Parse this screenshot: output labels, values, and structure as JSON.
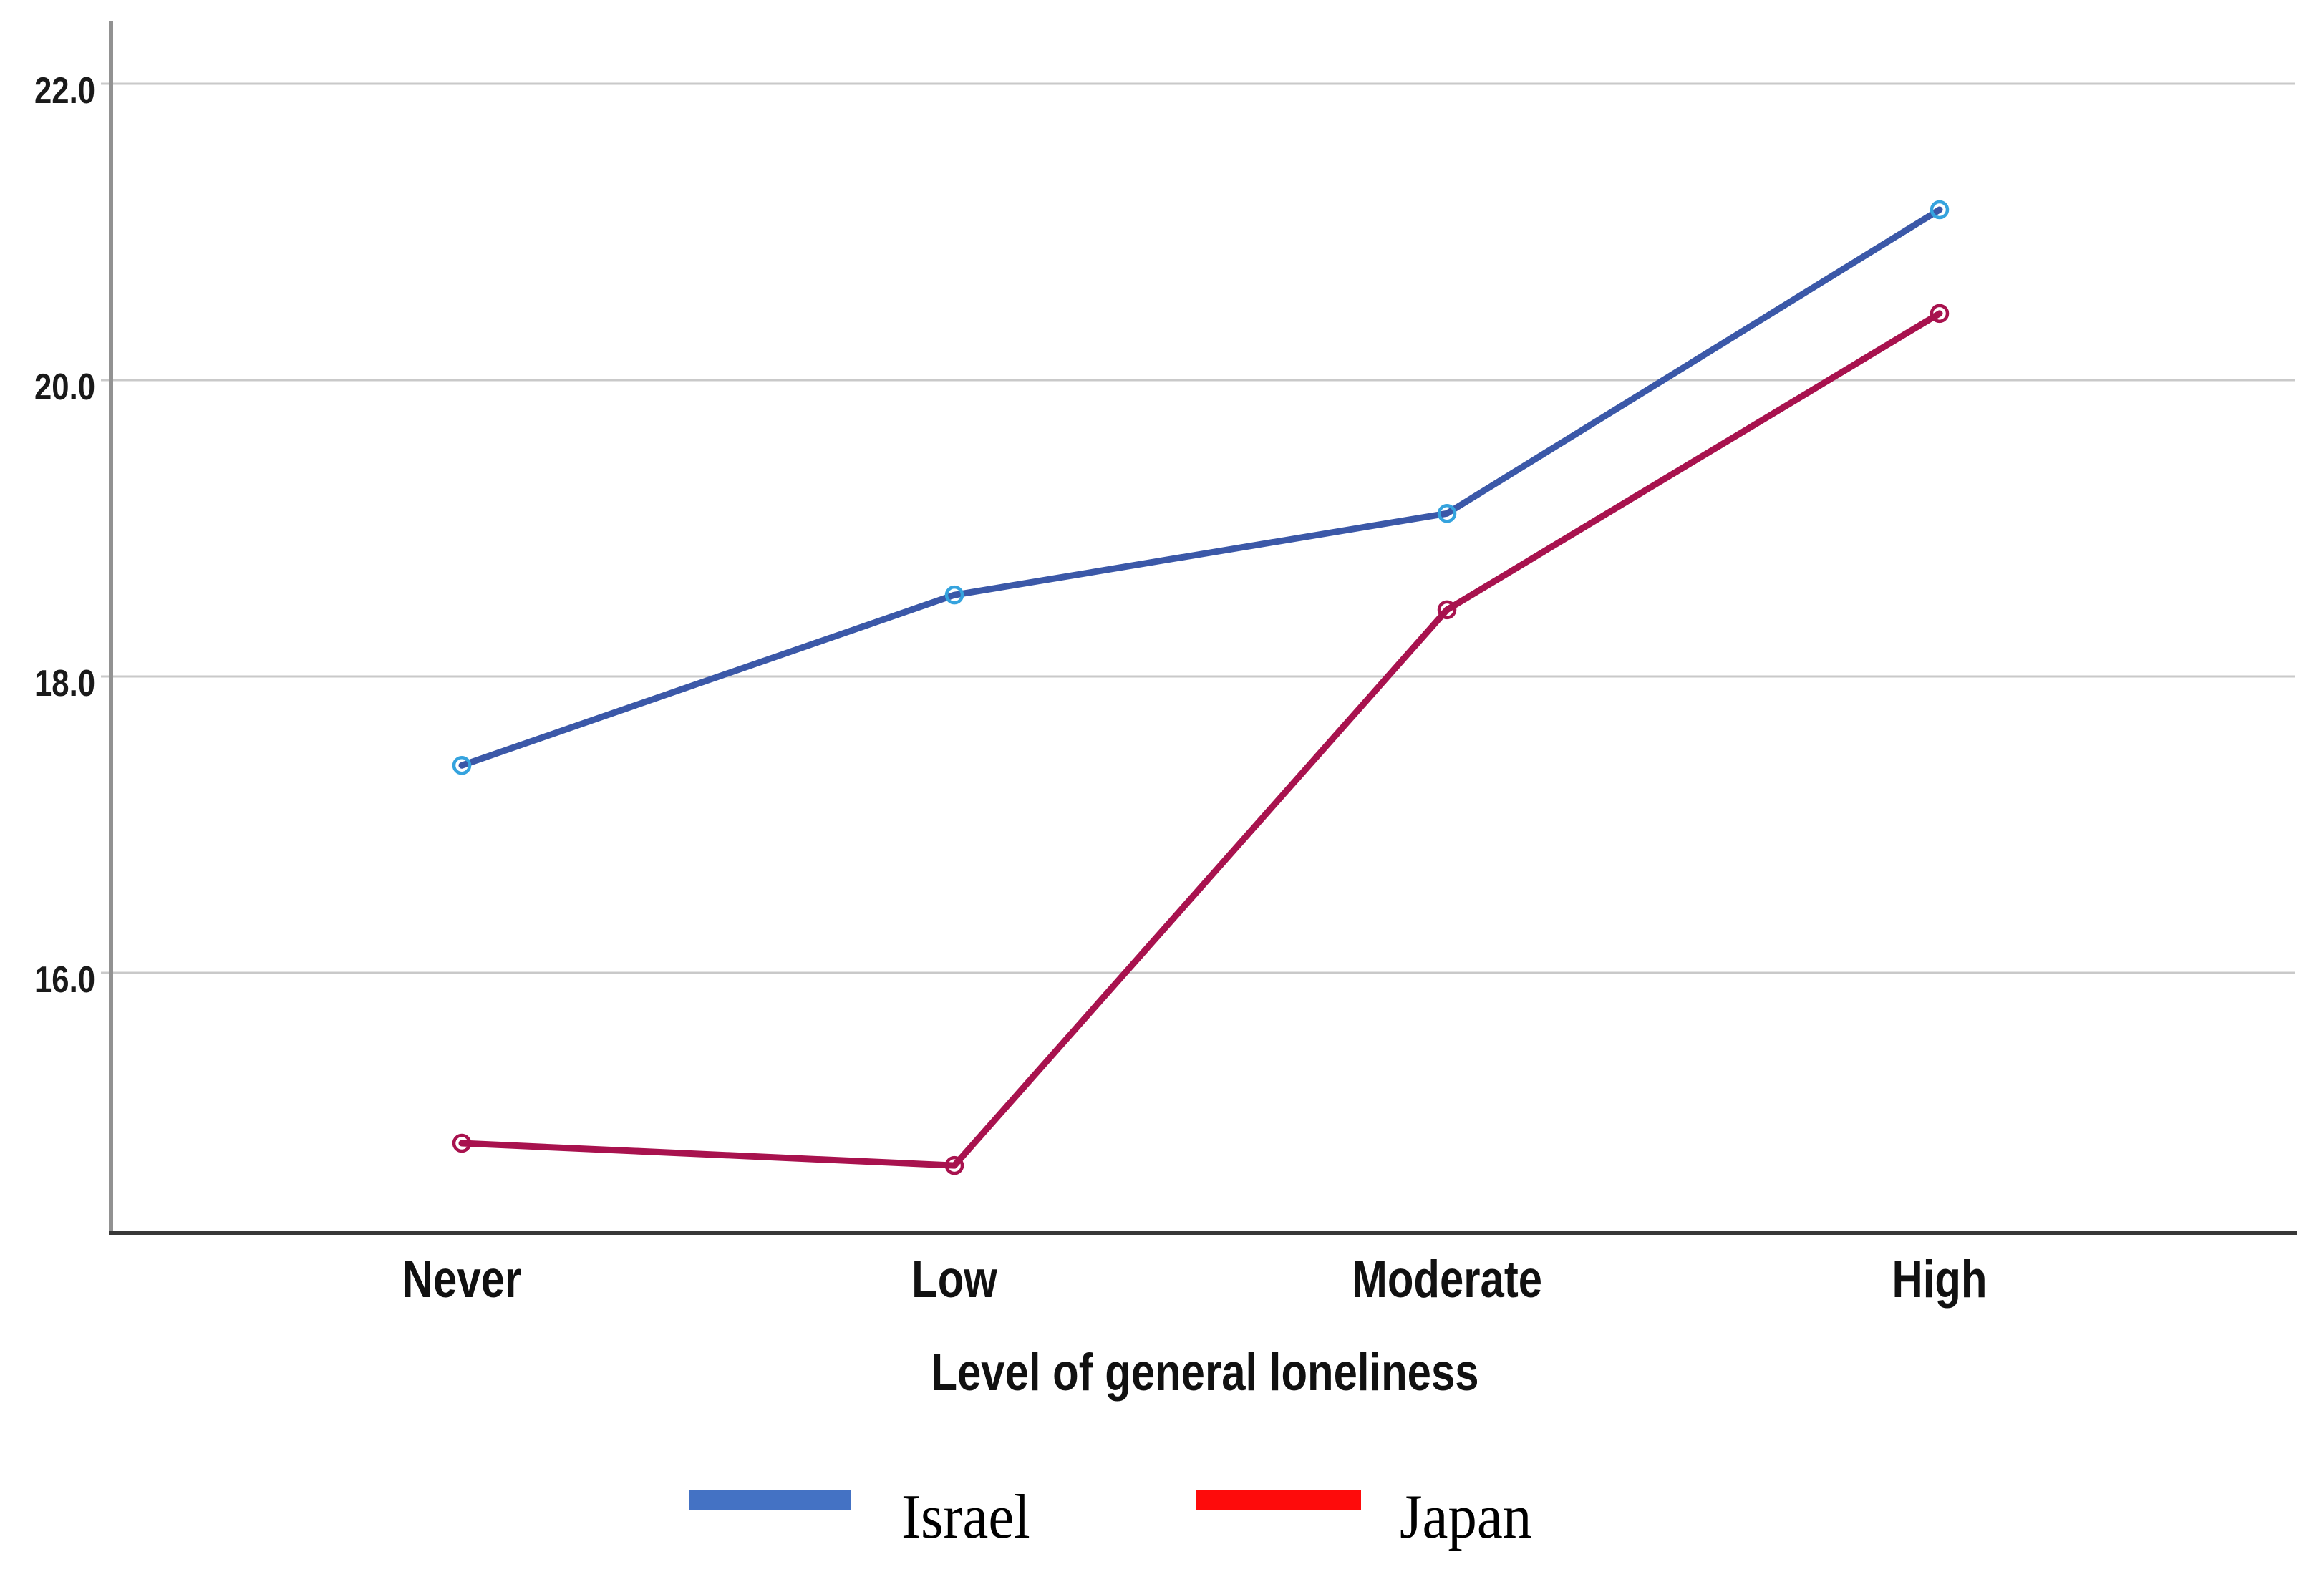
{
  "chart_data": {
    "type": "line",
    "title": "",
    "xlabel": "Level of general loneliness",
    "ylabel": "",
    "categories": [
      "Never",
      "Low",
      "Moderate",
      "High"
    ],
    "series": [
      {
        "name": "Israel",
        "values": [
          17.4,
          18.55,
          19.1,
          21.15
        ],
        "line_color": "#3B58A8",
        "marker_color": "#35A3DE"
      },
      {
        "name": "Japan",
        "values": [
          14.85,
          14.7,
          18.45,
          20.45
        ],
        "line_color": "#A8124E",
        "marker_color": "#A8124E"
      }
    ],
    "y_ticks": [
      {
        "value": 22,
        "label": "22.0"
      },
      {
        "value": 20,
        "label": "20.0"
      },
      {
        "value": 18,
        "label": "18.0"
      },
      {
        "value": 16,
        "label": "16.0"
      }
    ],
    "ylim": [
      14.25,
      22.5
    ],
    "grid": "horizontal",
    "legend": {
      "position": "bottom",
      "entries": [
        {
          "label": "Israel",
          "swatch_color": "#4472C4"
        },
        {
          "label": "Japan",
          "swatch_color": "#FE0B0B"
        }
      ]
    },
    "axis_colors": {
      "grid": "#C9C9C9",
      "y_axis": "#929292",
      "x_axis": "#383838",
      "text": "#1A1A1A"
    }
  }
}
